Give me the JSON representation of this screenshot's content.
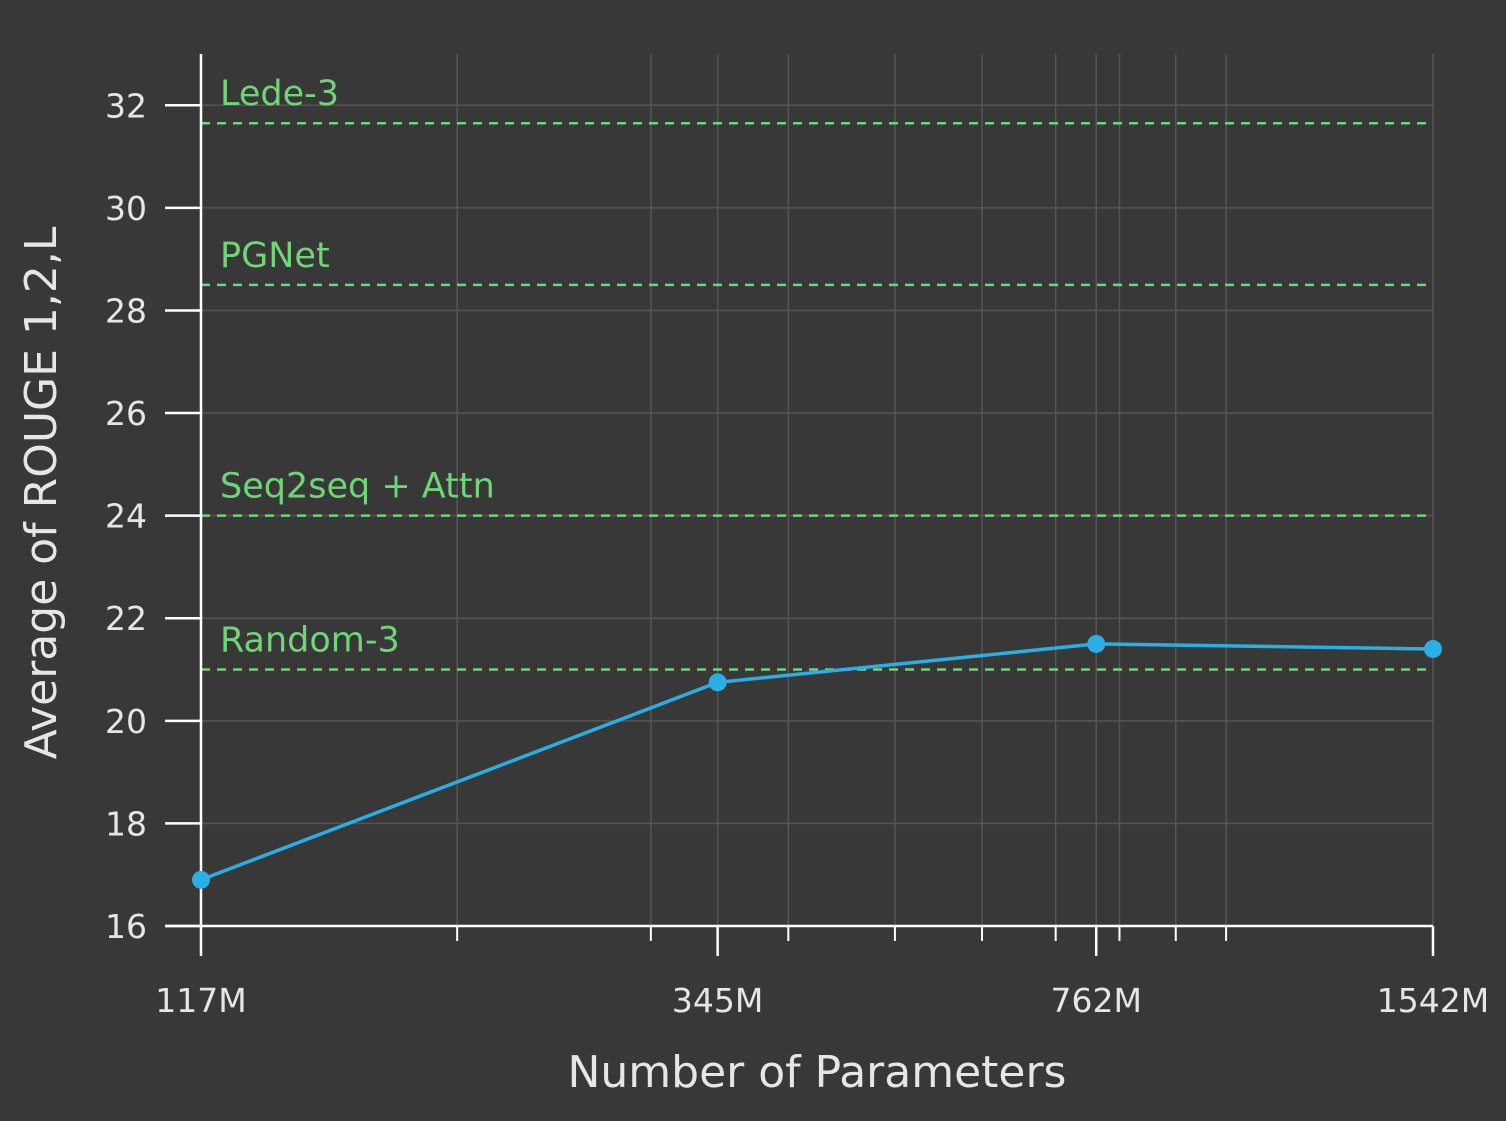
{
  "chart_data": {
    "type": "line",
    "xlabel": "Number of Parameters",
    "ylabel": "Average of ROUGE 1,2,L",
    "x_scale": "log",
    "x_ticks": [
      117,
      345,
      762,
      1542
    ],
    "x_tick_labels": [
      "117M",
      "345M",
      "762M",
      "1542M"
    ],
    "ylim": [
      16,
      33
    ],
    "y_ticks": [
      16,
      18,
      20,
      22,
      24,
      26,
      28,
      30,
      32
    ],
    "y_tick_labels": [
      "16",
      "18",
      "20",
      "22",
      "24",
      "26",
      "28",
      "30",
      "32"
    ],
    "grid": true,
    "series": [
      {
        "name": "",
        "color": "#29aee6",
        "x": [
          117,
          345,
          762,
          1542
        ],
        "y": [
          16.9,
          20.75,
          21.5,
          21.4
        ]
      }
    ],
    "reference_lines": [
      {
        "label": "Lede-3",
        "y": 31.65
      },
      {
        "label": "PGNet",
        "y": 28.5
      },
      {
        "label": "Seq2seq + Attn",
        "y": 24.0
      },
      {
        "label": "Random-3",
        "y": 21.0
      }
    ],
    "colors": {
      "background": "#383838",
      "axis": "#ffffff",
      "grid": "#555555",
      "text": "#e6e6e6",
      "reference": "#6fd576",
      "series": "#29aee6"
    }
  }
}
